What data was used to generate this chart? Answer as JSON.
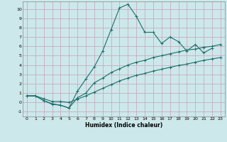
{
  "title": "",
  "xlabel": "Humidex (Indice chaleur)",
  "bg_color": "#cce8ea",
  "grid_color": "#c8a0b8",
  "line_color": "#1a6e6a",
  "xlim": [
    -0.5,
    23.5
  ],
  "ylim": [
    -1.5,
    10.8
  ],
  "xticks": [
    0,
    1,
    2,
    3,
    4,
    5,
    6,
    7,
    8,
    9,
    10,
    11,
    12,
    13,
    14,
    15,
    16,
    17,
    18,
    19,
    20,
    21,
    22,
    23
  ],
  "yticks": [
    -1,
    0,
    1,
    2,
    3,
    4,
    5,
    6,
    7,
    8,
    9,
    10
  ],
  "curve1_x": [
    0,
    1,
    2,
    3,
    4,
    5,
    6,
    7,
    8,
    9,
    10,
    11,
    12,
    13,
    14,
    15,
    16,
    17,
    18,
    19,
    20,
    21,
    22
  ],
  "curve1_y": [
    0.7,
    0.7,
    0.2,
    -0.2,
    -0.3,
    -0.6,
    1.2,
    2.5,
    3.8,
    5.5,
    7.8,
    10.1,
    10.5,
    9.2,
    7.5,
    7.5,
    6.3,
    7.0,
    6.5,
    5.5,
    6.2,
    5.3,
    5.8
  ],
  "curve2_x": [
    0,
    1,
    2,
    3,
    4,
    5,
    6,
    7,
    8,
    9,
    10,
    11,
    12,
    13,
    14,
    15,
    16,
    17,
    18,
    19,
    20,
    21,
    22,
    23
  ],
  "curve2_y": [
    0.7,
    0.7,
    0.2,
    -0.15,
    -0.3,
    -0.6,
    0.5,
    1.0,
    2.1,
    2.6,
    3.2,
    3.6,
    4.0,
    4.3,
    4.5,
    4.8,
    5.0,
    5.2,
    5.4,
    5.6,
    5.7,
    5.9,
    6.0,
    6.2
  ],
  "curve3_x": [
    0,
    1,
    2,
    3,
    4,
    5,
    6,
    7,
    8,
    9,
    10,
    11,
    12,
    13,
    14,
    15,
    16,
    17,
    18,
    19,
    20,
    21,
    22,
    23
  ],
  "curve3_y": [
    0.7,
    0.7,
    0.4,
    0.1,
    0.1,
    0.0,
    0.35,
    0.7,
    1.1,
    1.5,
    1.9,
    2.3,
    2.6,
    2.9,
    3.1,
    3.35,
    3.55,
    3.75,
    3.95,
    4.1,
    4.3,
    4.5,
    4.65,
    4.8
  ]
}
